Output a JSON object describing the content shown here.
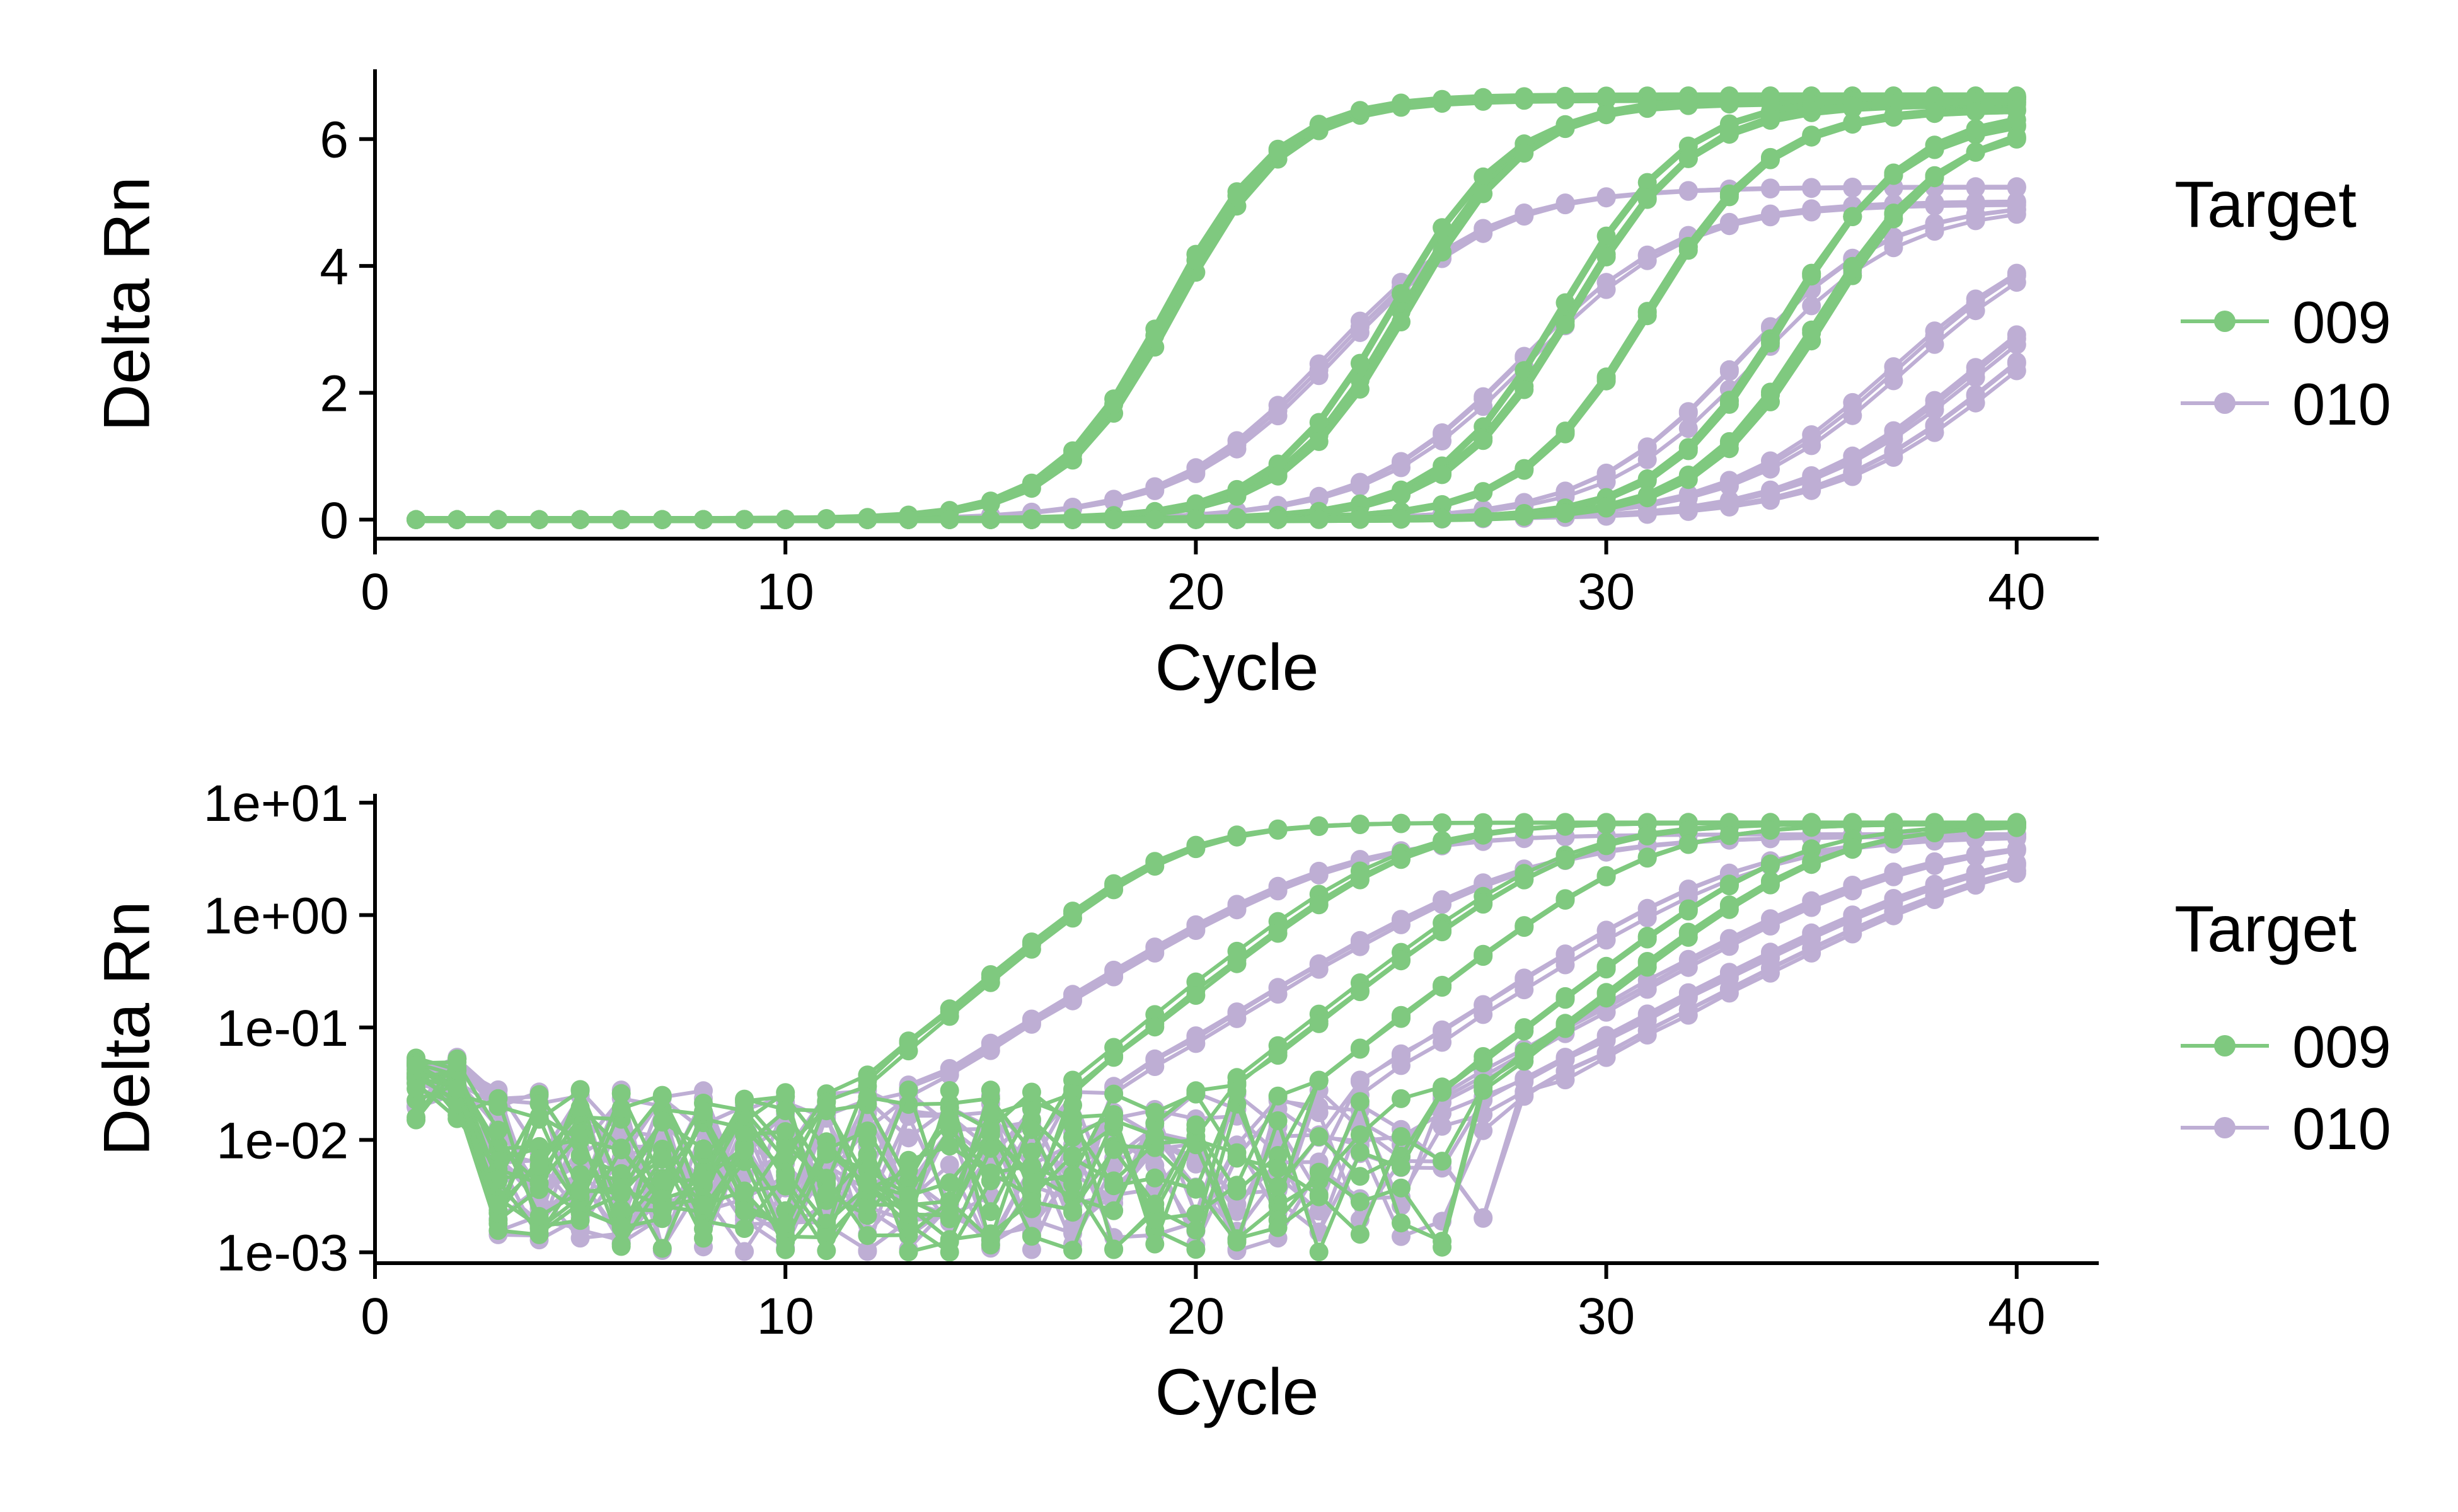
{
  "colors": {
    "target_009": "#7fc97f",
    "target_010": "#beaed4"
  },
  "chart_data": [
    {
      "type": "line",
      "panel": "linear",
      "xlabel": "Cycle",
      "ylabel": "Delta Rn",
      "xlim": [
        0,
        42
      ],
      "ylim": [
        -0.3,
        7.1
      ],
      "xticks": [
        0,
        10,
        20,
        30,
        40
      ],
      "xtick_labels": [
        "0",
        "10",
        "20",
        "30",
        "40"
      ],
      "yticks": [
        0,
        2,
        4,
        6
      ],
      "ytick_labels": [
        "0",
        "2",
        "4",
        "6"
      ],
      "y_scale": "linear",
      "grid": false,
      "legend": {
        "title": "Target",
        "position": "right",
        "entries": [
          "009",
          "010"
        ]
      }
    },
    {
      "type": "line",
      "panel": "log",
      "xlabel": "Cycle",
      "ylabel": "Delta Rn",
      "xlim": [
        0,
        42
      ],
      "ylim": [
        0.0008,
        12
      ],
      "xticks": [
        0,
        10,
        20,
        30,
        40
      ],
      "xtick_labels": [
        "0",
        "10",
        "20",
        "30",
        "40"
      ],
      "yticks": [
        0.001,
        0.01,
        0.1,
        1,
        10
      ],
      "ytick_labels": [
        "1e-03",
        "1e-02",
        "1e-01",
        "1e+00",
        "1e+01"
      ],
      "y_scale": "log",
      "y_floor": 0.001,
      "grid": false,
      "legend": {
        "title": "Target",
        "position": "right",
        "entries": [
          "009",
          "010"
        ]
      }
    }
  ],
  "amplification_curves": {
    "cycles": [
      1,
      40
    ],
    "groups": [
      {
        "name": "009",
        "note": "green curves; plateau, midpoint cycle, steepness, sample count",
        "curves": [
          {
            "plateau": 6.62,
            "midpoint": 19.3,
            "k": 0.72,
            "count": 3
          },
          {
            "plateau": 6.6,
            "midpoint": 25.0,
            "k": 0.68,
            "count": 3
          },
          {
            "plateau": 6.6,
            "midpoint": 29.0,
            "k": 0.66,
            "count": 3
          },
          {
            "plateau": 6.5,
            "midpoint": 30.8,
            "k": 0.66,
            "count": 3
          },
          {
            "plateau": 6.4,
            "midpoint": 34.3,
            "k": 0.66,
            "count": 3
          },
          {
            "plateau": 6.3,
            "midpoint": 35.1,
            "k": 0.66,
            "count": 3
          }
        ]
      },
      {
        "name": "010",
        "note": "purple curves; plateau, midpoint cycle, steepness, sample count",
        "curves": [
          {
            "plateau": 5.2,
            "midpoint": 23.4,
            "k": 0.52,
            "count": 3
          },
          {
            "plateau": 5.0,
            "midpoint": 27.9,
            "k": 0.52,
            "count": 3
          },
          {
            "plateau": 5.0,
            "midpoint": 33.4,
            "k": 0.55,
            "count": 3
          },
          {
            "plateau": 4.8,
            "midpoint": 37.2,
            "k": 0.48,
            "count": 3
          },
          {
            "plateau": 4.7,
            "midpoint": 39.0,
            "k": 0.45,
            "count": 3
          },
          {
            "plateau": 4.6,
            "midpoint": 39.8,
            "k": 0.45,
            "count": 3
          }
        ]
      }
    ]
  }
}
